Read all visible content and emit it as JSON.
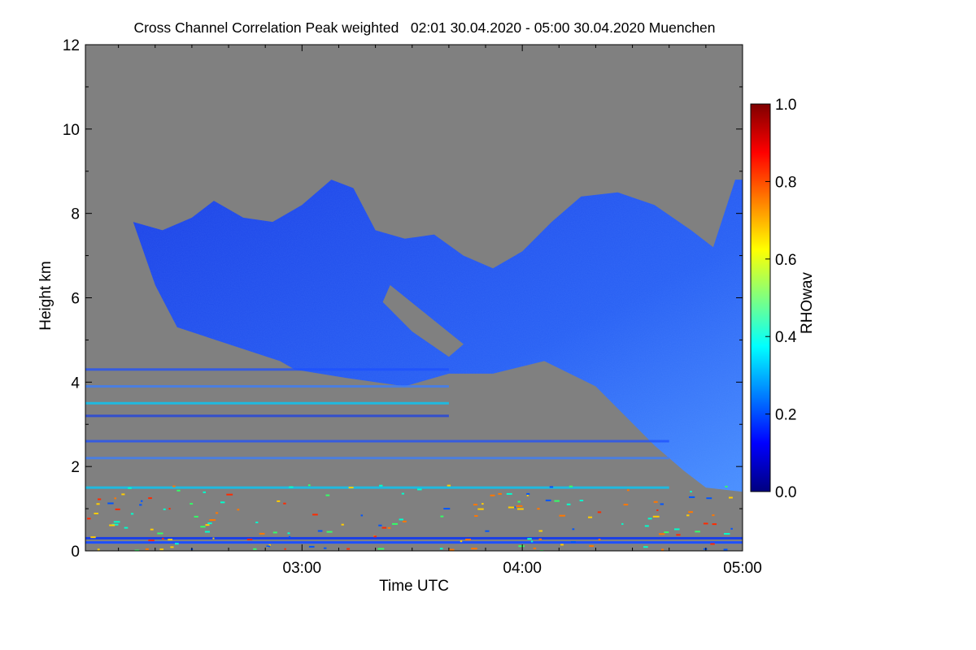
{
  "chart_data": {
    "type": "heatmap",
    "title": "Cross Channel Correlation Peak weighted   02:01 30.04.2020 - 05:00 30.04.2020 Muenchen",
    "xlabel": "Time UTC",
    "ylabel": "Height km",
    "x_range": [
      "02:01",
      "05:00"
    ],
    "ylim": [
      0,
      12
    ],
    "x_ticks": [
      {
        "value": "03:00",
        "label": "03:00"
      },
      {
        "value": "04:00",
        "label": "04:00"
      },
      {
        "value": "05:00",
        "label": "05:00"
      }
    ],
    "y_ticks": [
      0,
      2,
      4,
      6,
      8,
      10,
      12
    ],
    "colorbar": {
      "label": "RHOwav",
      "range": [
        0.0,
        1.0
      ],
      "ticks": [
        "0.0",
        "0.2",
        "0.4",
        "0.6",
        "0.8",
        "1.0"
      ],
      "colormap": "jet"
    },
    "background_color": "#808080",
    "cloud_color_low": "#1a3fe6",
    "cloud_color_high": "#4a90ff",
    "cloud_upper_boundary": [
      {
        "t": "02:14",
        "h": 7.8
      },
      {
        "t": "02:22",
        "h": 7.6
      },
      {
        "t": "02:30",
        "h": 7.9
      },
      {
        "t": "02:36",
        "h": 8.3
      },
      {
        "t": "02:44",
        "h": 7.9
      },
      {
        "t": "02:52",
        "h": 7.8
      },
      {
        "t": "03:00",
        "h": 8.2
      },
      {
        "t": "03:08",
        "h": 8.8
      },
      {
        "t": "03:14",
        "h": 8.6
      },
      {
        "t": "03:20",
        "h": 7.6
      },
      {
        "t": "03:28",
        "h": 7.4
      },
      {
        "t": "03:36",
        "h": 7.5
      },
      {
        "t": "03:44",
        "h": 7.0
      },
      {
        "t": "03:52",
        "h": 6.7
      },
      {
        "t": "04:00",
        "h": 7.1
      },
      {
        "t": "04:08",
        "h": 7.8
      },
      {
        "t": "04:16",
        "h": 8.4
      },
      {
        "t": "04:26",
        "h": 8.5
      },
      {
        "t": "04:36",
        "h": 8.2
      },
      {
        "t": "04:46",
        "h": 7.6
      },
      {
        "t": "04:52",
        "h": 7.2
      },
      {
        "t": "04:58",
        "h": 8.8
      }
    ],
    "cloud_lower_boundary": [
      {
        "t": "02:58",
        "h": 4.3
      },
      {
        "t": "03:12",
        "h": 4.1
      },
      {
        "t": "03:28",
        "h": 3.9
      },
      {
        "t": "03:40",
        "h": 4.2
      },
      {
        "t": "03:52",
        "h": 4.2
      },
      {
        "t": "04:06",
        "h": 4.5
      },
      {
        "t": "04:20",
        "h": 3.9
      },
      {
        "t": "04:28",
        "h": 3.2
      },
      {
        "t": "04:36",
        "h": 2.5
      },
      {
        "t": "04:44",
        "h": 1.9
      },
      {
        "t": "04:50",
        "h": 1.5
      },
      {
        "t": "05:00",
        "h": 1.4
      }
    ],
    "aerosol_layers_km": [
      4.3,
      3.9,
      3.5,
      3.2,
      2.6,
      2.2,
      1.5,
      0.3,
      0.2
    ]
  }
}
